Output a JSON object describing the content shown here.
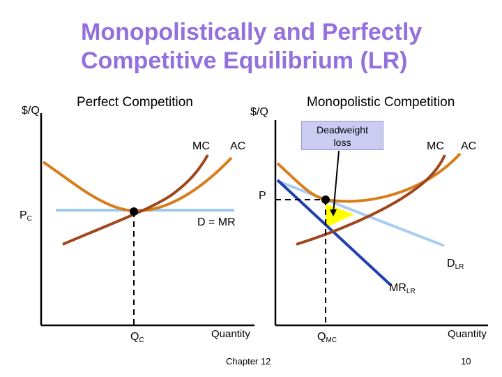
{
  "title": {
    "line1": "Monopolistically and Perfectly",
    "line2": "Competitive Equilibrium (LR)"
  },
  "left_panel": {
    "heading": "Perfect Competition",
    "y_axis_label": "$/Q",
    "x_axis_label": "Quantity",
    "mc_label": "MC",
    "ac_label": "AC",
    "price_label": "P",
    "price_sub": "C",
    "demand_label": "D = MR",
    "quantity_label": "Q",
    "quantity_sub": "C"
  },
  "right_panel": {
    "heading": "Monopolistic Competition",
    "y_axis_label": "$/Q",
    "x_axis_label": "Quantity",
    "callout_line1": "Deadweight",
    "callout_line2": "loss",
    "mc_label": "MC",
    "ac_label": "AC",
    "price_label": "P",
    "demand_label": "D",
    "demand_sub": "LR",
    "mr_label": "MR",
    "mr_sub": "LR",
    "quantity_label": "Q",
    "quantity_sub": "MC"
  },
  "footer": {
    "chapter": "Chapter 12",
    "page": "10"
  },
  "colors": {
    "title": "#9370db",
    "ac_curve": "#d97c1a",
    "mc_curve": "#a0461c",
    "demand_pc": "#9ec9ef",
    "demand_mc": "#a8cdf0",
    "mr_curve": "#1f3fb0",
    "deadweight_fill": "#ffff00",
    "callout_fill": "#ccccf2"
  }
}
